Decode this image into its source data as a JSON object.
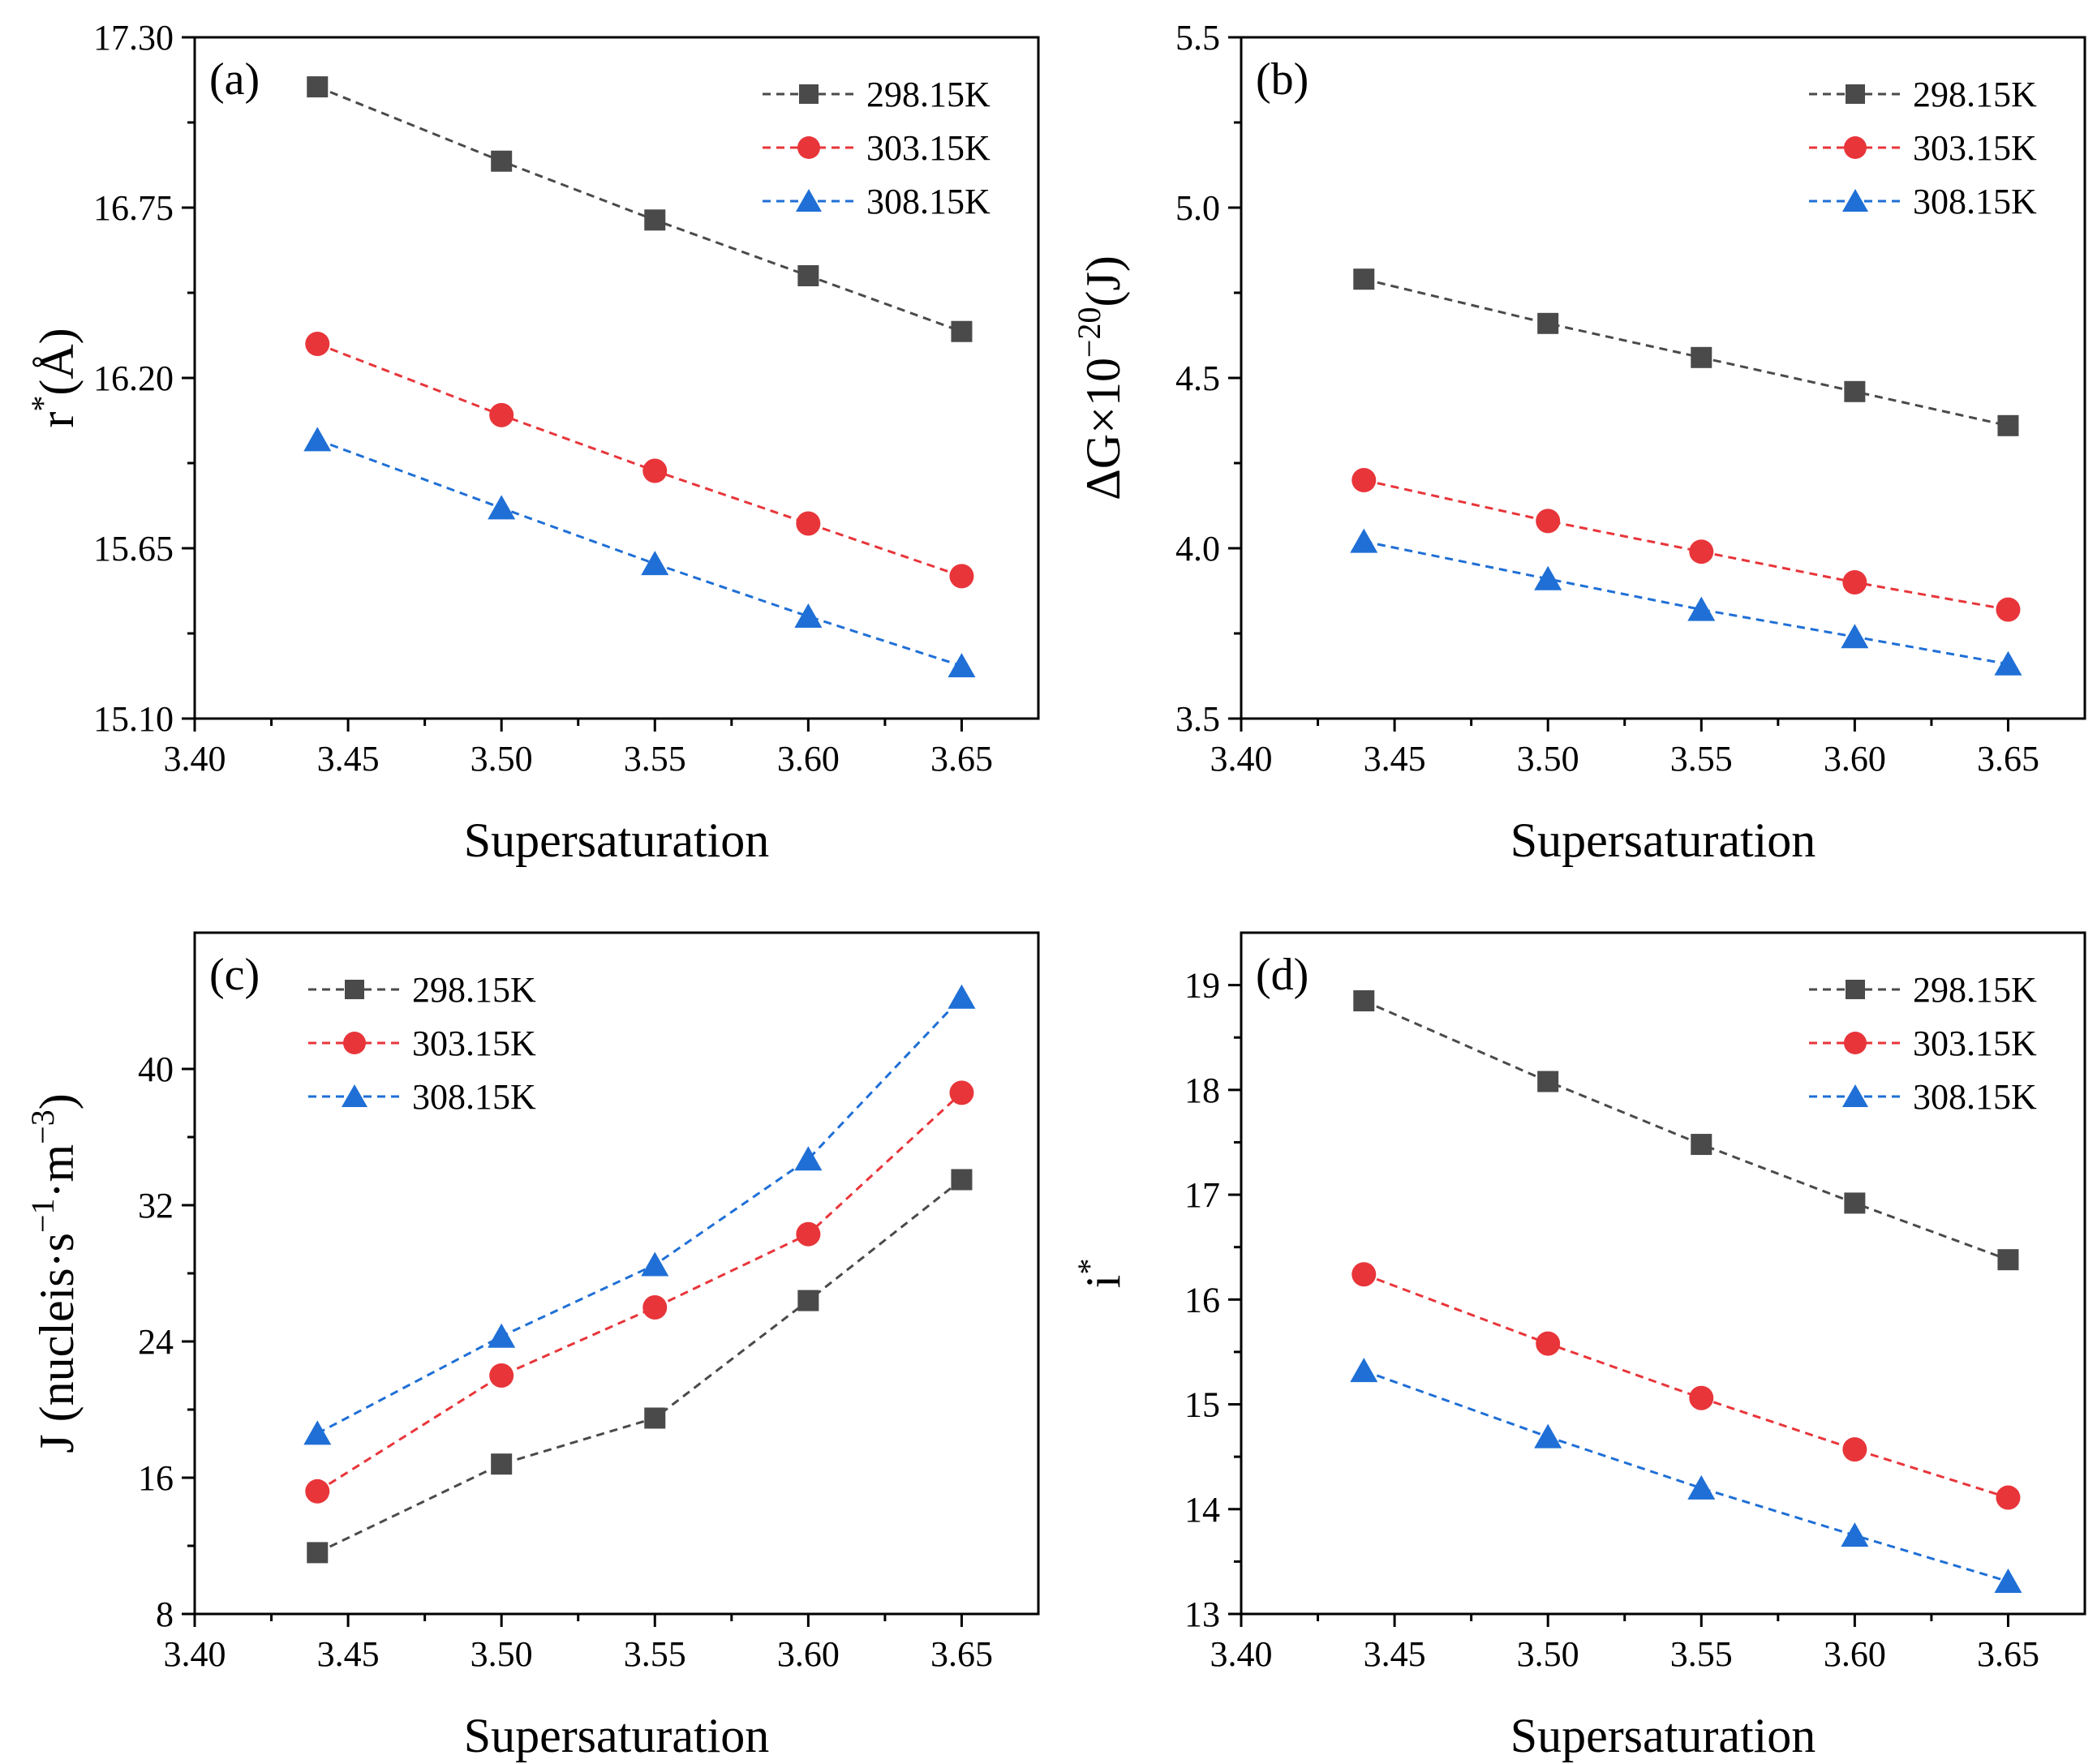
{
  "chart_data": [
    {
      "id": "a",
      "type": "line",
      "panel_label": "(a)",
      "xlabel": "Supersaturation",
      "ylabel": "r",
      "ylabel_sup": "*",
      "ylabel_unit": "(Å)",
      "xlim": [
        3.4,
        3.675
      ],
      "ylim": [
        15.1,
        17.3
      ],
      "x_ticks": [
        "3.40",
        "3.45",
        "3.50",
        "3.55",
        "3.60",
        "3.65"
      ],
      "y_ticks": [
        "15.10",
        "15.65",
        "16.20",
        "16.75",
        "17.30"
      ],
      "legend_position": "top-right",
      "x": [
        3.44,
        3.5,
        3.55,
        3.6,
        3.65
      ],
      "series": [
        {
          "name": "298.15K",
          "marker": "square",
          "color": "#4a4a4a",
          "values": [
            17.14,
            16.9,
            16.71,
            16.53,
            16.35
          ]
        },
        {
          "name": "303.15K",
          "marker": "circle",
          "color": "#e8353a",
          "values": [
            16.31,
            16.08,
            15.9,
            15.73,
            15.56
          ]
        },
        {
          "name": "308.15K",
          "marker": "triangle",
          "color": "#1f6fd6",
          "values": [
            16.0,
            15.78,
            15.6,
            15.43,
            15.27
          ]
        }
      ]
    },
    {
      "id": "b",
      "type": "line",
      "panel_label": "(b)",
      "xlabel": "Supersaturation",
      "ylabel": "ΔG×10",
      "ylabel_sup": "−20",
      "ylabel_unit": "(J)",
      "xlim": [
        3.4,
        3.675
      ],
      "ylim": [
        3.5,
        5.5
      ],
      "x_ticks": [
        "3.40",
        "3.45",
        "3.50",
        "3.55",
        "3.60",
        "3.65"
      ],
      "y_ticks": [
        "3.5",
        "4.0",
        "4.5",
        "5.0",
        "5.5"
      ],
      "legend_position": "top-right",
      "x": [
        3.44,
        3.5,
        3.55,
        3.6,
        3.65
      ],
      "series": [
        {
          "name": "298.15K",
          "marker": "square",
          "color": "#4a4a4a",
          "values": [
            4.79,
            4.66,
            4.56,
            4.46,
            4.36
          ]
        },
        {
          "name": "303.15K",
          "marker": "circle",
          "color": "#e8353a",
          "values": [
            4.2,
            4.08,
            3.99,
            3.9,
            3.82
          ]
        },
        {
          "name": "308.15K",
          "marker": "triangle",
          "color": "#1f6fd6",
          "values": [
            4.02,
            3.91,
            3.82,
            3.74,
            3.66
          ]
        }
      ]
    },
    {
      "id": "c",
      "type": "line",
      "panel_label": "(c)",
      "xlabel": "Supersaturation",
      "ylabel": "J (nucleis·s",
      "ylabel_sup": "−1",
      "ylabel_mid": "·m",
      "ylabel_sup2": "−3",
      "ylabel_unit": ")",
      "xlim": [
        3.4,
        3.675
      ],
      "ylim": [
        8,
        48
      ],
      "x_ticks": [
        "3.40",
        "3.45",
        "3.50",
        "3.55",
        "3.60",
        "3.65"
      ],
      "y_ticks": [
        "8",
        "16",
        "24",
        "32",
        "40"
      ],
      "legend_position": "top-left",
      "x": [
        3.44,
        3.5,
        3.55,
        3.6,
        3.65
      ],
      "series": [
        {
          "name": "298.15K",
          "marker": "square",
          "color": "#4a4a4a",
          "values": [
            11.6,
            16.8,
            19.5,
            26.4,
            33.5
          ]
        },
        {
          "name": "303.15K",
          "marker": "circle",
          "color": "#e8353a",
          "values": [
            15.2,
            22.0,
            26.0,
            30.3,
            38.6
          ]
        },
        {
          "name": "308.15K",
          "marker": "triangle",
          "color": "#1f6fd6",
          "values": [
            18.6,
            24.3,
            28.5,
            34.7,
            44.2
          ]
        }
      ]
    },
    {
      "id": "d",
      "type": "line",
      "panel_label": "(d)",
      "xlabel": "Supersaturation",
      "ylabel": "i",
      "ylabel_sup": "*",
      "ylabel_unit": "",
      "xlim": [
        3.4,
        3.675
      ],
      "ylim": [
        13,
        19.5
      ],
      "x_ticks": [
        "3.40",
        "3.45",
        "3.50",
        "3.55",
        "3.60",
        "3.65"
      ],
      "y_ticks": [
        "13",
        "14",
        "15",
        "16",
        "17",
        "18",
        "19"
      ],
      "legend_position": "top-right",
      "x": [
        3.44,
        3.5,
        3.55,
        3.6,
        3.65
      ],
      "series": [
        {
          "name": "298.15K",
          "marker": "square",
          "color": "#4a4a4a",
          "values": [
            18.85,
            18.08,
            17.48,
            16.92,
            16.38
          ]
        },
        {
          "name": "303.15K",
          "marker": "circle",
          "color": "#e8353a",
          "values": [
            16.24,
            15.58,
            15.06,
            14.57,
            14.11
          ]
        },
        {
          "name": "308.15K",
          "marker": "triangle",
          "color": "#1f6fd6",
          "values": [
            15.32,
            14.69,
            14.2,
            13.75,
            13.31
          ]
        }
      ]
    }
  ]
}
